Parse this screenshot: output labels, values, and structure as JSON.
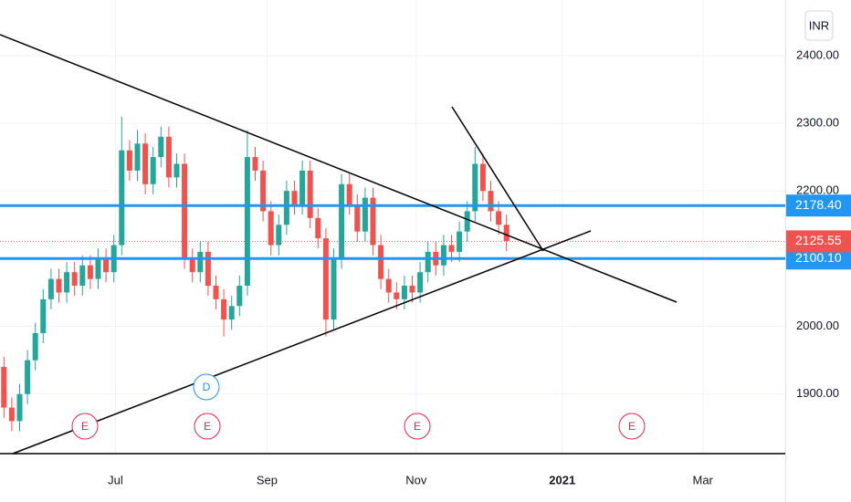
{
  "chart_data": {
    "type": "candlestick",
    "currency": "INR",
    "open": [
      1940,
      1880,
      1860,
      1900,
      1950,
      1990,
      2040,
      2070,
      2050,
      2080,
      2060,
      2090,
      2070,
      2100,
      2080,
      2120,
      2260,
      2230,
      2270,
      2210,
      2250,
      2280,
      2220,
      2240,
      2100,
      2080,
      2110,
      2060,
      2040,
      2010,
      2030,
      2060,
      2250,
      2230,
      2170,
      2120,
      2150,
      2200,
      2180,
      2230,
      2160,
      2130,
      2010,
      2100,
      2210,
      2180,
      2140,
      2190,
      2120,
      2070,
      2050,
      2040,
      2060,
      2050,
      2080,
      2110,
      2090,
      2120,
      2110,
      2140,
      2170,
      2240,
      2200,
      2170,
      2150
    ],
    "high": [
      1955,
      1895,
      1915,
      1965,
      2005,
      2055,
      2085,
      2085,
      2095,
      2095,
      2105,
      2105,
      2115,
      2115,
      2135,
      2310,
      2275,
      2290,
      2285,
      2265,
      2295,
      2295,
      2255,
      2255,
      2115,
      2125,
      2125,
      2075,
      2055,
      2045,
      2075,
      2290,
      2265,
      2245,
      2185,
      2165,
      2215,
      2215,
      2245,
      2245,
      2175,
      2145,
      2115,
      2225,
      2225,
      2195,
      2205,
      2205,
      2135,
      2085,
      2065,
      2075,
      2075,
      2095,
      2125,
      2125,
      2135,
      2135,
      2155,
      2185,
      2265,
      2255,
      2215,
      2185,
      2165
    ],
    "low": [
      1865,
      1845,
      1845,
      1885,
      1935,
      1975,
      2025,
      2035,
      2035,
      2045,
      2045,
      2055,
      2055,
      2065,
      2065,
      2105,
      2215,
      2215,
      2195,
      2195,
      2235,
      2205,
      2205,
      2085,
      2065,
      2065,
      2045,
      2025,
      1985,
      1995,
      2015,
      2045,
      2215,
      2155,
      2105,
      2105,
      2135,
      2165,
      2165,
      2145,
      2115,
      1985,
      1995,
      2085,
      2165,
      2125,
      2125,
      2105,
      2055,
      2035,
      2025,
      2025,
      2035,
      2035,
      2065,
      2075,
      2075,
      2095,
      2095,
      2125,
      2155,
      2185,
      2155,
      2135,
      2111
    ],
    "close": [
      1880,
      1860,
      1900,
      1950,
      1990,
      2040,
      2070,
      2050,
      2080,
      2060,
      2090,
      2070,
      2100,
      2080,
      2120,
      2260,
      2230,
      2270,
      2210,
      2250,
      2280,
      2220,
      2240,
      2100,
      2080,
      2110,
      2060,
      2040,
      2010,
      2030,
      2060,
      2250,
      2230,
      2170,
      2120,
      2150,
      2200,
      2180,
      2230,
      2160,
      2130,
      2010,
      2100,
      2210,
      2180,
      2140,
      2190,
      2120,
      2070,
      2050,
      2040,
      2060,
      2050,
      2080,
      2110,
      2090,
      2120,
      2110,
      2140,
      2170,
      2240,
      2200,
      2170,
      2150,
      2126
    ],
    "up_color": "#26a69a",
    "down_color": "#ef5350",
    "xlim": [
      0,
      100
    ],
    "xticks": [
      {
        "value": 14.7,
        "label": "Jul"
      },
      {
        "value": 34,
        "label": "Sep"
      },
      {
        "value": 53,
        "label": "Nov"
      },
      {
        "value": 71.6,
        "label": "2021"
      },
      {
        "value": 89.5,
        "label": "Mar"
      }
    ],
    "ylim": [
      1812,
      2482
    ],
    "yticks": [
      {
        "value": 1900,
        "label": "1900.00"
      },
      {
        "value": 2000,
        "label": "2000.00"
      },
      {
        "value": 2100,
        "label": "2100.00"
      },
      {
        "value": 2200,
        "label": "2200.00"
      },
      {
        "value": 2300,
        "label": "2300.00"
      },
      {
        "value": 2400,
        "label": "2400.00"
      }
    ],
    "grid": true,
    "price_lines": [
      {
        "value": 2178.4,
        "label": "2178.40",
        "color": "#2196f3"
      },
      {
        "value": 2100.1,
        "label": "2100.10",
        "color": "#2196f3"
      }
    ],
    "last_price": {
      "value": 2125.55,
      "label": "2125.55",
      "color": "#ef5350"
    },
    "events": [
      "E",
      "E",
      "E",
      "E"
    ],
    "dividend": "D"
  }
}
